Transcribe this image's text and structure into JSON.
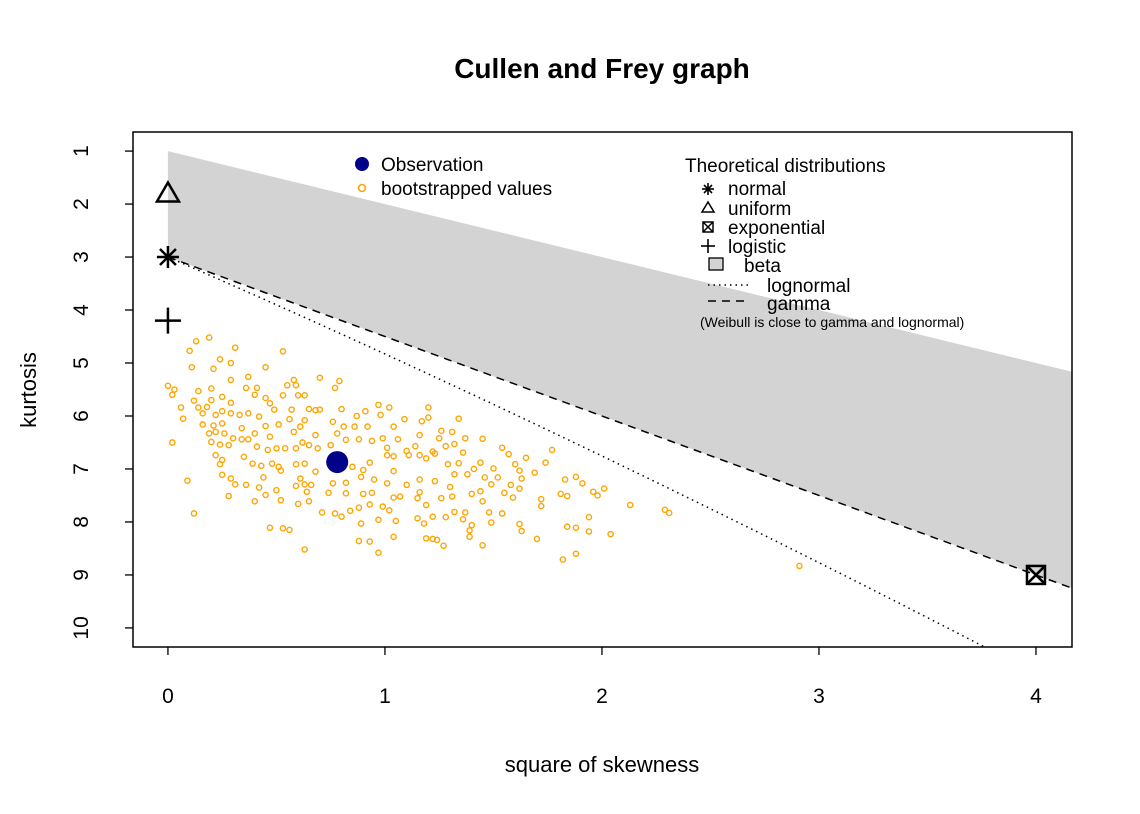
{
  "chart_data": {
    "type": "scatter",
    "title": "Cullen and Frey graph",
    "xlabel": "square of skewness",
    "ylabel": "kurtosis",
    "xlim": [
      -0.161,
      4.166
    ],
    "ylim": [
      10.36,
      0.64
    ],
    "x_ticks": [
      "0",
      "1",
      "2",
      "3",
      "4"
    ],
    "y_ticks": [
      "1",
      "2",
      "3",
      "4",
      "5",
      "6",
      "7",
      "8",
      "9",
      "10"
    ],
    "colors": {
      "observation": "#00008B",
      "bootstrap": "#FFA500",
      "beta": "#D3D3D3"
    },
    "observation": [
      0.78,
      6.87
    ],
    "theoretical_points": {
      "normal": [
        0,
        3
      ],
      "uniform": [
        0,
        1.8
      ],
      "exponential": [
        4,
        9
      ],
      "logistic": [
        0,
        4.2
      ]
    },
    "bootstrapped": [
      [
        0.19,
        4.52
      ],
      [
        0.13,
        4.59
      ],
      [
        0.1,
        4.77
      ],
      [
        0.31,
        4.71
      ],
      [
        0.53,
        4.78
      ],
      [
        0.24,
        4.93
      ],
      [
        0.29,
        5.0
      ],
      [
        0.11,
        5.08
      ],
      [
        0.21,
        5.11
      ],
      [
        0.45,
        5.08
      ],
      [
        0.29,
        5.32
      ],
      [
        0.0,
        5.43
      ],
      [
        0.03,
        5.5
      ],
      [
        0.02,
        5.6
      ],
      [
        0.14,
        5.53
      ],
      [
        0.2,
        5.48
      ],
      [
        0.37,
        5.26
      ],
      [
        0.7,
        5.28
      ],
      [
        0.79,
        5.34
      ],
      [
        0.58,
        5.32
      ],
      [
        0.55,
        5.42
      ],
      [
        0.59,
        5.42
      ],
      [
        0.77,
        5.47
      ],
      [
        0.36,
        5.47
      ],
      [
        0.41,
        5.47
      ],
      [
        0.4,
        5.6
      ],
      [
        0.45,
        5.66
      ],
      [
        0.25,
        5.64
      ],
      [
        0.12,
        5.71
      ],
      [
        0.2,
        5.7
      ],
      [
        0.29,
        5.75
      ],
      [
        0.06,
        5.84
      ],
      [
        0.07,
        6.05
      ],
      [
        0.14,
        5.84
      ],
      [
        0.18,
        5.83
      ],
      [
        0.16,
        5.95
      ],
      [
        0.22,
        5.98
      ],
      [
        0.25,
        5.91
      ],
      [
        0.29,
        5.95
      ],
      [
        0.33,
        5.98
      ],
      [
        0.37,
        5.95
      ],
      [
        0.42,
        6.01
      ],
      [
        0.47,
        5.76
      ],
      [
        0.49,
        5.88
      ],
      [
        0.53,
        5.61
      ],
      [
        0.6,
        5.61
      ],
      [
        0.63,
        5.61
      ],
      [
        0.57,
        5.88
      ],
      [
        0.65,
        5.87
      ],
      [
        0.68,
        5.89
      ],
      [
        0.7,
        5.88
      ],
      [
        0.8,
        5.87
      ],
      [
        0.97,
        5.79
      ],
      [
        1.02,
        5.84
      ],
      [
        1.2,
        5.84
      ],
      [
        0.98,
        5.98
      ],
      [
        1.09,
        6.06
      ],
      [
        1.2,
        6.03
      ],
      [
        1.17,
        6.1
      ],
      [
        1.34,
        6.05
      ],
      [
        0.87,
        6.0
      ],
      [
        0.91,
        5.91
      ],
      [
        0.76,
        6.11
      ],
      [
        0.16,
        6.16
      ],
      [
        0.21,
        6.18
      ],
      [
        0.25,
        6.14
      ],
      [
        0.34,
        6.23
      ],
      [
        0.45,
        6.19
      ],
      [
        0.51,
        6.16
      ],
      [
        0.56,
        6.06
      ],
      [
        0.61,
        6.2
      ],
      [
        0.63,
        6.08
      ],
      [
        0.19,
        6.33
      ],
      [
        0.22,
        6.3
      ],
      [
        0.26,
        6.33
      ],
      [
        0.4,
        6.33
      ],
      [
        0.47,
        6.39
      ],
      [
        0.58,
        6.3
      ],
      [
        0.68,
        6.36
      ],
      [
        0.78,
        6.33
      ],
      [
        0.81,
        6.2
      ],
      [
        0.86,
        6.2
      ],
      [
        0.92,
        6.2
      ],
      [
        1.04,
        6.2
      ],
      [
        1.16,
        6.36
      ],
      [
        1.26,
        6.28
      ],
      [
        1.31,
        6.3
      ],
      [
        1.45,
        6.43
      ],
      [
        1.37,
        6.42
      ],
      [
        1.25,
        6.42
      ],
      [
        0.02,
        6.5
      ],
      [
        0.2,
        6.49
      ],
      [
        0.24,
        6.54
      ],
      [
        0.28,
        6.55
      ],
      [
        0.3,
        6.42
      ],
      [
        0.34,
        6.44
      ],
      [
        0.37,
        6.44
      ],
      [
        0.41,
        6.58
      ],
      [
        0.46,
        6.64
      ],
      [
        0.5,
        6.61
      ],
      [
        0.54,
        6.61
      ],
      [
        0.59,
        6.61
      ],
      [
        0.62,
        6.5
      ],
      [
        0.65,
        6.55
      ],
      [
        0.69,
        6.61
      ],
      [
        0.75,
        6.55
      ],
      [
        0.82,
        6.45
      ],
      [
        0.88,
        6.44
      ],
      [
        0.94,
        6.47
      ],
      [
        0.99,
        6.42
      ],
      [
        1.01,
        6.6
      ],
      [
        1.06,
        6.44
      ],
      [
        1.1,
        6.66
      ],
      [
        1.14,
        6.57
      ],
      [
        1.22,
        6.67
      ],
      [
        1.28,
        6.57
      ],
      [
        1.32,
        6.53
      ],
      [
        1.36,
        6.69
      ],
      [
        1.54,
        6.6
      ],
      [
        1.57,
        6.72
      ],
      [
        1.65,
        6.79
      ],
      [
        1.77,
        6.64
      ],
      [
        1.74,
        6.88
      ],
      [
        1.6,
        6.91
      ],
      [
        0.22,
        6.74
      ],
      [
        0.24,
        6.91
      ],
      [
        0.25,
        6.83
      ],
      [
        0.35,
        6.77
      ],
      [
        0.39,
        6.9
      ],
      [
        0.43,
        6.94
      ],
      [
        0.48,
        6.9
      ],
      [
        0.51,
        6.96
      ],
      [
        0.59,
        6.91
      ],
      [
        0.63,
        6.9
      ],
      [
        0.68,
        7.05
      ],
      [
        0.85,
        6.96
      ],
      [
        0.9,
        7.02
      ],
      [
        0.93,
        6.88
      ],
      [
        1.01,
        6.74
      ],
      [
        1.04,
        6.76
      ],
      [
        1.11,
        6.74
      ],
      [
        1.16,
        6.74
      ],
      [
        1.19,
        6.8
      ],
      [
        1.23,
        6.71
      ],
      [
        1.29,
        6.91
      ],
      [
        1.34,
        6.89
      ],
      [
        1.41,
        7.0
      ],
      [
        1.44,
        6.88
      ],
      [
        1.5,
        6.99
      ],
      [
        1.62,
        7.03
      ],
      [
        1.69,
        7.07
      ],
      [
        0.25,
        7.11
      ],
      [
        0.29,
        7.18
      ],
      [
        0.31,
        7.29
      ],
      [
        0.36,
        7.3
      ],
      [
        0.44,
        7.16
      ],
      [
        0.52,
        7.03
      ],
      [
        0.61,
        7.18
      ],
      [
        0.63,
        7.29
      ],
      [
        0.66,
        7.3
      ],
      [
        0.76,
        7.27
      ],
      [
        0.82,
        7.26
      ],
      [
        0.89,
        7.15
      ],
      [
        0.95,
        7.2
      ],
      [
        1.01,
        7.27
      ],
      [
        1.04,
        7.04
      ],
      [
        1.1,
        7.3
      ],
      [
        1.16,
        7.2
      ],
      [
        1.23,
        7.23
      ],
      [
        1.32,
        7.1
      ],
      [
        1.38,
        7.1
      ],
      [
        1.46,
        7.16
      ],
      [
        1.52,
        7.16
      ],
      [
        1.49,
        7.29
      ],
      [
        1.63,
        7.18
      ],
      [
        1.58,
        7.3
      ],
      [
        1.62,
        7.37
      ],
      [
        1.83,
        7.2
      ],
      [
        1.88,
        7.15
      ],
      [
        1.91,
        7.27
      ],
      [
        2.01,
        7.37
      ],
      [
        0.09,
        7.22
      ],
      [
        0.28,
        7.51
      ],
      [
        0.42,
        7.35
      ],
      [
        0.45,
        7.49
      ],
      [
        0.5,
        7.4
      ],
      [
        0.52,
        7.59
      ],
      [
        0.59,
        7.32
      ],
      [
        0.64,
        7.43
      ],
      [
        0.65,
        7.61
      ],
      [
        0.4,
        7.61
      ],
      [
        0.6,
        7.66
      ],
      [
        0.74,
        7.45
      ],
      [
        0.82,
        7.46
      ],
      [
        0.9,
        7.47
      ],
      [
        0.94,
        7.45
      ],
      [
        1.04,
        7.54
      ],
      [
        1.07,
        7.52
      ],
      [
        1.16,
        7.44
      ],
      [
        1.15,
        7.55
      ],
      [
        1.19,
        7.68
      ],
      [
        1.26,
        7.55
      ],
      [
        1.31,
        7.52
      ],
      [
        1.3,
        7.34
      ],
      [
        1.4,
        7.47
      ],
      [
        1.44,
        7.42
      ],
      [
        1.45,
        7.61
      ],
      [
        1.55,
        7.45
      ],
      [
        1.59,
        7.54
      ],
      [
        1.72,
        7.57
      ],
      [
        1.72,
        7.7
      ],
      [
        1.81,
        7.47
      ],
      [
        1.84,
        7.51
      ],
      [
        1.96,
        7.43
      ],
      [
        1.98,
        7.5
      ],
      [
        0.12,
        7.84
      ],
      [
        0.71,
        7.82
      ],
      [
        0.77,
        7.84
      ],
      [
        0.8,
        7.9
      ],
      [
        0.84,
        7.79
      ],
      [
        0.88,
        7.73
      ],
      [
        0.93,
        7.67
      ],
      [
        0.99,
        7.71
      ],
      [
        1.02,
        7.78
      ],
      [
        1.05,
        7.98
      ],
      [
        0.97,
        7.96
      ],
      [
        0.89,
        8.03
      ],
      [
        1.15,
        7.93
      ],
      [
        1.18,
        8.03
      ],
      [
        1.22,
        7.9
      ],
      [
        1.28,
        7.91
      ],
      [
        1.32,
        7.81
      ],
      [
        1.37,
        7.82
      ],
      [
        1.36,
        7.95
      ],
      [
        1.4,
        8.06
      ],
      [
        1.39,
        8.16
      ],
      [
        1.48,
        7.82
      ],
      [
        1.49,
        8.01
      ],
      [
        1.54,
        7.84
      ],
      [
        1.62,
        8.04
      ],
      [
        1.63,
        8.17
      ],
      [
        1.7,
        8.32
      ],
      [
        1.84,
        8.09
      ],
      [
        1.88,
        8.11
      ],
      [
        1.94,
        7.91
      ],
      [
        1.94,
        8.18
      ],
      [
        2.04,
        8.23
      ],
      [
        0.47,
        8.11
      ],
      [
        0.53,
        8.12
      ],
      [
        0.56,
        8.15
      ],
      [
        0.63,
        8.52
      ],
      [
        0.88,
        8.36
      ],
      [
        0.93,
        8.37
      ],
      [
        0.97,
        8.58
      ],
      [
        1.04,
        8.28
      ],
      [
        1.19,
        8.31
      ],
      [
        1.22,
        8.32
      ],
      [
        1.24,
        8.34
      ],
      [
        1.27,
        8.45
      ],
      [
        1.39,
        8.28
      ],
      [
        1.45,
        8.44
      ],
      [
        1.82,
        8.71
      ],
      [
        1.88,
        8.6
      ],
      [
        2.13,
        7.68
      ],
      [
        2.29,
        7.77
      ],
      [
        2.31,
        7.83
      ],
      [
        2.91,
        8.83
      ]
    ],
    "legend_obs": {
      "observation": "Observation",
      "bootstrap": "bootstrapped values"
    },
    "legend_theo": {
      "title": "Theoretical distributions",
      "normal": "normal",
      "uniform": "uniform",
      "exponential": "exponential",
      "logistic": "logistic",
      "beta": "beta",
      "lognormal": "lognormal",
      "gamma": "gamma",
      "note": "(Weibull is close to gamma and lognormal)"
    }
  }
}
